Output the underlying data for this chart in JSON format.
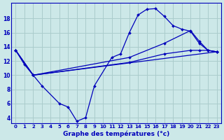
{
  "title": "Graphe des températures (°c)",
  "background_color": "#cce8e8",
  "grid_color": "#aacccc",
  "line_color": "#0000bb",
  "y_ticks": [
    4,
    6,
    8,
    10,
    12,
    14,
    16,
    18
  ],
  "ylim": [
    3.2,
    20.2
  ],
  "xlim": [
    -0.5,
    23.5
  ],
  "curve1_x": [
    0,
    1,
    2,
    3,
    5,
    6,
    7,
    8,
    9,
    11,
    12,
    13,
    14,
    15,
    16,
    17,
    18,
    19,
    20,
    21,
    22,
    23
  ],
  "curve1_y": [
    13.5,
    11.5,
    10.0,
    8.5,
    6.0,
    5.5,
    3.5,
    4.0,
    8.5,
    12.5,
    13.0,
    16.0,
    18.5,
    19.3,
    19.4,
    18.3,
    17.0,
    16.5,
    16.2,
    14.5,
    13.5,
    13.3
  ],
  "curve2_x": [
    0,
    2,
    13,
    17,
    20,
    21,
    22,
    23
  ],
  "curve2_y": [
    13.5,
    10.0,
    12.5,
    14.5,
    16.3,
    14.8,
    13.5,
    13.3
  ],
  "curve3_x": [
    0,
    2,
    13,
    17,
    20,
    21,
    22,
    23
  ],
  "curve3_y": [
    13.5,
    10.0,
    11.8,
    13.0,
    13.5,
    13.5,
    13.5,
    13.3
  ],
  "curve4_x": [
    0,
    2,
    23
  ],
  "curve4_y": [
    13.5,
    10.0,
    13.3
  ]
}
